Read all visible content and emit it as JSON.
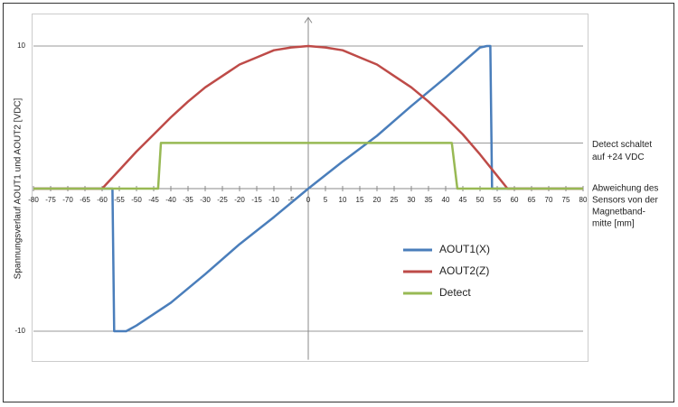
{
  "chart_data": {
    "type": "line",
    "ylabel": "Spannungsverlauf AOUT1 und AOUT2 [VDC]",
    "xlabel": [
      "Abweichung des",
      "Sensors von der",
      "Magnetband-",
      "mitte [mm]"
    ],
    "xlim": [
      -80,
      80
    ],
    "ylim": [
      -12,
      12
    ],
    "xticks": [
      -80,
      -75,
      -70,
      -65,
      -60,
      -55,
      -50,
      -45,
      -40,
      -35,
      -30,
      -25,
      -20,
      -15,
      -10,
      -5,
      0,
      5,
      10,
      15,
      20,
      25,
      30,
      35,
      40,
      45,
      50,
      55,
      60,
      65,
      70,
      75,
      80
    ],
    "yticks": [
      -10,
      10
    ],
    "grid": true,
    "annotations": [
      {
        "text": [
          "Detect schaltet",
          "auf +24 VDC"
        ],
        "y": 3.2
      }
    ],
    "series": [
      {
        "name": "AOUT1(X)",
        "color": "#4a7ebb",
        "x": [
          -80,
          -57,
          -56.5,
          -53,
          -50,
          -40,
          -30,
          -20,
          -10,
          0,
          10,
          20,
          30,
          40,
          50,
          52,
          53,
          53.5,
          80
        ],
        "values": [
          0,
          0,
          -10,
          -10,
          -9.6,
          -8.0,
          -6.0,
          -3.9,
          -2.0,
          0,
          1.9,
          3.7,
          5.8,
          7.8,
          9.9,
          10,
          10,
          0,
          0
        ]
      },
      {
        "name": "AOUT2(Z)",
        "color": "#be4b48",
        "x": [
          -80,
          -60,
          -55,
          -50,
          -45,
          -40,
          -35,
          -30,
          -25,
          -20,
          -15,
          -10,
          -5,
          0,
          5,
          10,
          15,
          20,
          25,
          30,
          35,
          40,
          45,
          50,
          55,
          58,
          80
        ],
        "values": [
          0,
          0,
          1.3,
          2.6,
          3.8,
          5.0,
          6.1,
          7.1,
          7.9,
          8.7,
          9.2,
          9.7,
          9.9,
          10,
          9.9,
          9.7,
          9.2,
          8.7,
          7.9,
          7.1,
          6.1,
          5.0,
          3.8,
          2.4,
          0.9,
          0,
          0
        ]
      },
      {
        "name": "Detect",
        "color": "#98b954",
        "x": [
          -80,
          -43.7,
          -42.9,
          41.8,
          43.4,
          80
        ],
        "values": [
          0,
          0,
          3.2,
          3.2,
          0,
          0
        ]
      }
    ]
  }
}
